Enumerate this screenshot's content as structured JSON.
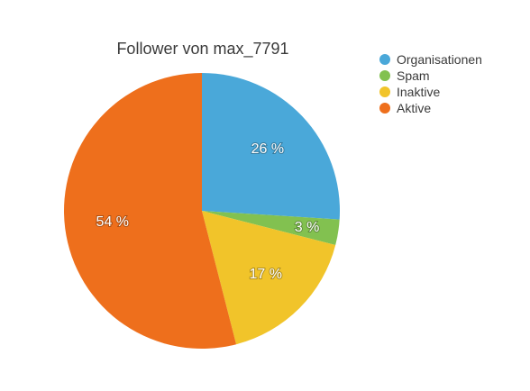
{
  "chart_data": {
    "type": "pie",
    "title": "Follower von max_7791",
    "slices": [
      {
        "label": "Organisationen",
        "value": 26,
        "display": "26 %",
        "color": "#4aa8d9"
      },
      {
        "label": "Spam",
        "value": 3,
        "display": "3 %",
        "color": "#82c150"
      },
      {
        "label": "Inaktive",
        "value": 17,
        "display": "17 %",
        "color": "#f1c42a"
      },
      {
        "label": "Aktive",
        "value": 54,
        "display": "54 %",
        "color": "#ee6f1c"
      }
    ],
    "legend_position": "top-right",
    "start_angle": "12 o'clock",
    "direction": "clockwise"
  }
}
